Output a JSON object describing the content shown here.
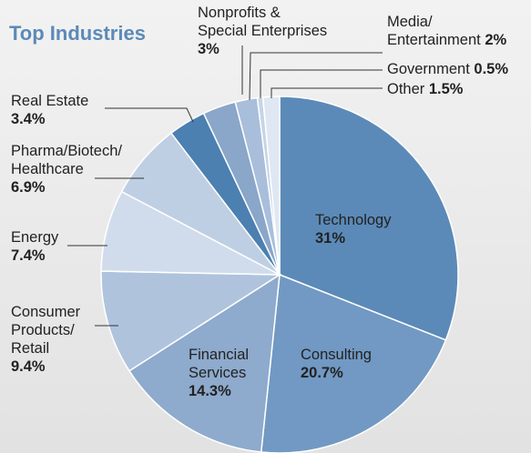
{
  "chart_data": {
    "type": "pie",
    "title": "Top Industries",
    "categories": [
      "Technology",
      "Consulting",
      "Financial\nServices",
      "Consumer\nProducts/\nRetail",
      "Energy",
      "Pharma/Biotech/\nHealthcare",
      "Real Estate",
      "Nonprofits &\nSpecial Enterprises",
      "Media/\nEntertainment",
      "Government",
      "Other"
    ],
    "values": [
      31,
      20.7,
      14.3,
      9.4,
      7.4,
      6.9,
      3.4,
      3,
      2,
      0.5,
      1.5
    ],
    "value_labels": [
      "31%",
      "20.7%",
      "14.3%",
      "9.4%",
      "7.4%",
      "6.9%",
      "3.4%",
      "3%",
      "2%",
      "0.5%",
      "1.5%"
    ],
    "colors": [
      "#5b8ab8",
      "#7199c3",
      "#8eaacd",
      "#afc3dd",
      "#d0dcec",
      "#bfcfe3",
      "#4b80b1",
      "#8aa6c9",
      "#a8bedb",
      "#c6d4e7",
      "#dfe7f2"
    ]
  }
}
